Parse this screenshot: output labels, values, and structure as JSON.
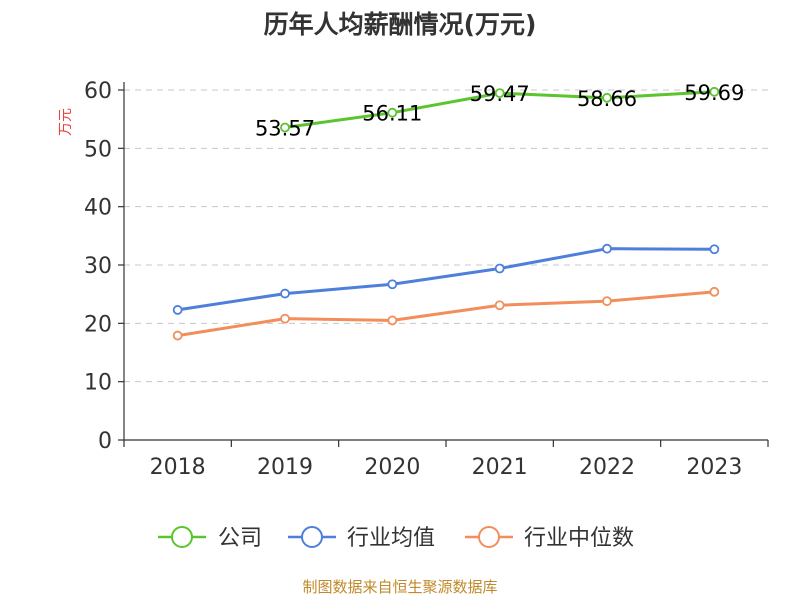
{
  "chart_data": {
    "type": "line",
    "title": "历年人均薪酬情况(万元)",
    "ylabel": "万元",
    "xlabel": "",
    "categories": [
      "2018",
      "2019",
      "2020",
      "2021",
      "2022",
      "2023"
    ],
    "ylim": [
      0,
      60
    ],
    "yticks": [
      0,
      10,
      20,
      30,
      40,
      50,
      60
    ],
    "grid": true,
    "legend_position": "bottom",
    "series": [
      {
        "name": "公司",
        "color": "#5bc42f",
        "values": [
          null,
          53.57,
          56.11,
          59.47,
          58.66,
          59.69
        ],
        "labels": [
          "",
          "53.57",
          "56.11",
          "59.47",
          "58.66",
          "59.69"
        ]
      },
      {
        "name": "行业均值",
        "color": "#4e7fdb",
        "values": [
          22.3,
          25.1,
          26.7,
          29.4,
          32.8,
          32.7
        ],
        "labels": [
          "",
          "",
          "",
          "",
          "",
          ""
        ]
      },
      {
        "name": "行业中位数",
        "color": "#f28e5b",
        "values": [
          17.9,
          20.8,
          20.5,
          23.1,
          23.8,
          25.4
        ],
        "labels": [
          "",
          "",
          "",
          "",
          "",
          ""
        ]
      }
    ]
  },
  "source": "制图数据来自恒生聚源数据库"
}
